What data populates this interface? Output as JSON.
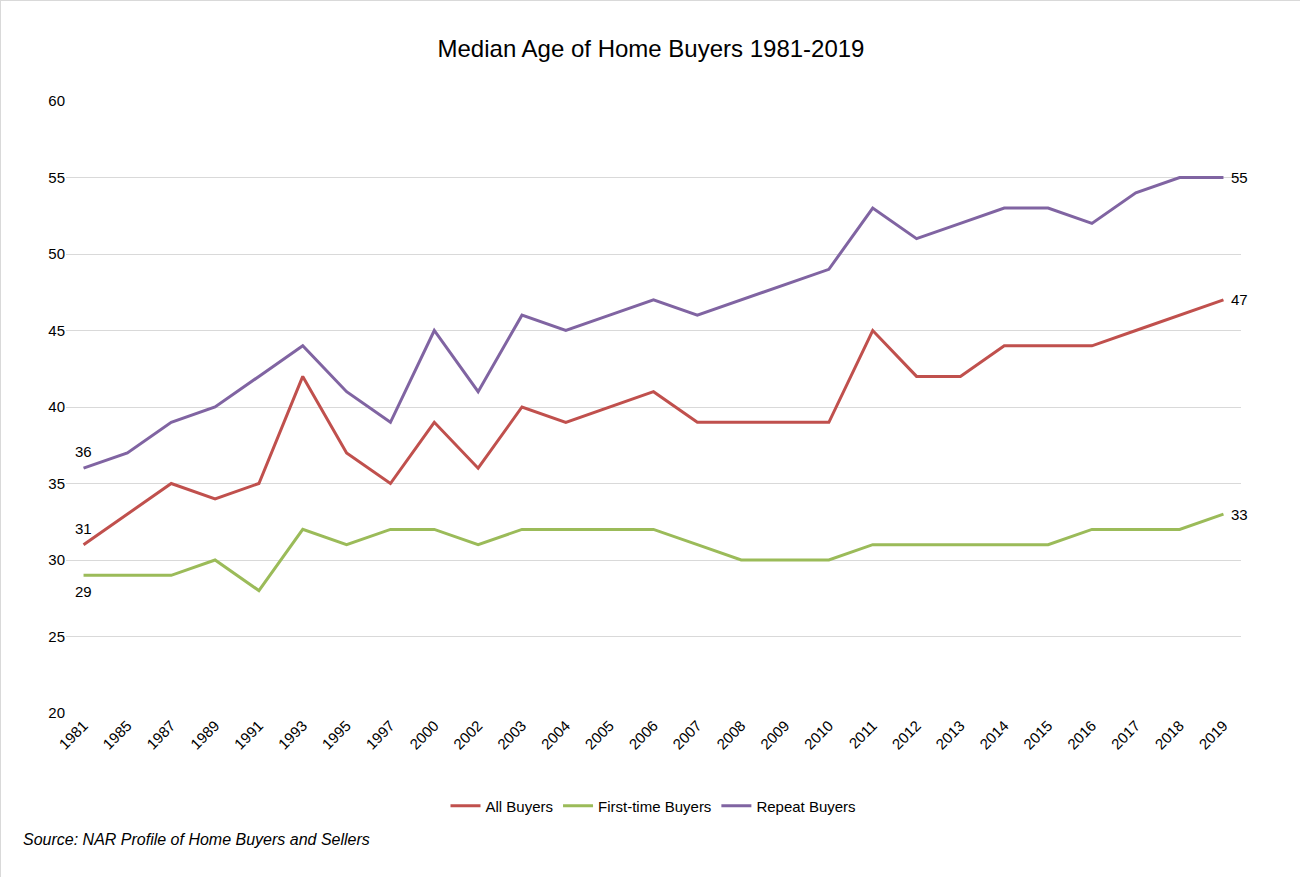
{
  "chart_data": {
    "type": "line",
    "title": "Median Age of Home Buyers 1981-2019",
    "source": "Source: NAR Profile of Home Buyers and Sellers",
    "categories": [
      "1981",
      "1985",
      "1987",
      "1989",
      "1991",
      "1993",
      "1995",
      "1997",
      "2000",
      "2002",
      "2003",
      "2004",
      "2005",
      "2006",
      "2007",
      "2008",
      "2009",
      "2010",
      "2011",
      "2012",
      "2013",
      "2014",
      "2015",
      "2016",
      "2017",
      "2018",
      "2019"
    ],
    "series": [
      {
        "name": "All Buyers",
        "color": "#c0504d",
        "values": [
          31,
          33,
          35,
          34,
          35,
          42,
          37,
          35,
          39,
          36,
          40,
          39,
          40,
          41,
          39,
          39,
          39,
          39,
          45,
          42,
          42,
          44,
          44,
          44,
          45,
          46,
          47
        ]
      },
      {
        "name": "First-time Buyers",
        "color": "#9bbb59",
        "values": [
          29,
          29,
          29,
          30,
          28,
          32,
          31,
          32,
          32,
          31,
          32,
          32,
          32,
          32,
          31,
          30,
          30,
          30,
          31,
          31,
          31,
          31,
          31,
          32,
          32,
          32,
          33
        ]
      },
      {
        "name": "Repeat Buyers",
        "color": "#8064a2",
        "values": [
          36,
          37,
          39,
          40,
          42,
          44,
          41,
          39,
          45,
          41,
          46,
          45,
          46,
          47,
          46,
          47,
          48,
          49,
          53,
          51,
          52,
          53,
          53,
          52,
          54,
          55,
          55
        ]
      }
    ],
    "annotations": [
      {
        "x": "1981",
        "y": 36,
        "text": "36"
      },
      {
        "x": "1981",
        "y": 31,
        "text": "31"
      },
      {
        "x": "1981",
        "y": 29,
        "text": "29"
      },
      {
        "x": "2019",
        "y": 55,
        "text": "55"
      },
      {
        "x": "2019",
        "y": 47,
        "text": "47"
      },
      {
        "x": "2019",
        "y": 33,
        "text": "33"
      }
    ],
    "ylim": [
      20,
      60
    ],
    "yticks": [
      20,
      25,
      30,
      35,
      40,
      45,
      50,
      55,
      60
    ],
    "grid": true,
    "legend": "bottom"
  }
}
